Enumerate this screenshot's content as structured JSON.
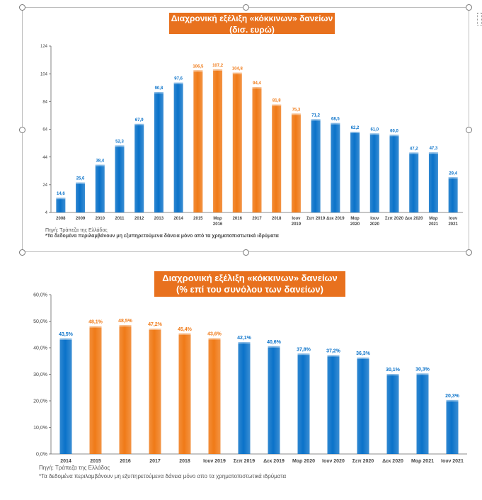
{
  "colors": {
    "blue": "#0a72c9",
    "orange": "#f07a17",
    "title_bg": "#e8711e",
    "axis": "#666666",
    "grid": "#d9d9d9"
  },
  "chart_data": [
    {
      "type": "bar",
      "title_line1": "Διαχρονική εξέλιξη «κόκκινων» δανείων",
      "title_line2": "(δισ. ευρώ)",
      "categories": [
        [
          "2008"
        ],
        [
          "2009"
        ],
        [
          "2010"
        ],
        [
          "2011"
        ],
        [
          "2012"
        ],
        [
          "2013"
        ],
        [
          "2014"
        ],
        [
          "2015"
        ],
        [
          "Μαρ",
          "2016"
        ],
        [
          "2016"
        ],
        [
          "2017"
        ],
        [
          "2018"
        ],
        [
          "Ιουν",
          "2019"
        ],
        [
          "Σεπ 2019"
        ],
        [
          "Δεκ 2019"
        ],
        [
          "Μαρ",
          "2020"
        ],
        [
          "Ιουν",
          "2020"
        ],
        [
          "Σεπ 2020"
        ],
        [
          "Δεκ 2020"
        ],
        [
          "Μαρ",
          "2021"
        ],
        [
          "Ιουν",
          "2021"
        ]
      ],
      "values": [
        14.6,
        25.6,
        38.4,
        52.3,
        67.9,
        90.8,
        97.6,
        106.5,
        107.2,
        104.8,
        94.4,
        81.8,
        75.3,
        71.2,
        68.5,
        62.2,
        61.0,
        60.0,
        47.2,
        47.3,
        29.4
      ],
      "value_labels": [
        "14,6",
        "25,6",
        "38,4",
        "52,3",
        "67,9",
        "90,8",
        "97,6",
        "106,5",
        "107,2",
        "104,8",
        "94,4",
        "81,8",
        "75,3",
        "71,2",
        "68,5",
        "62,2",
        "61,0",
        "60,0",
        "47,2",
        "47,3",
        "29,4"
      ],
      "bar_colors": [
        "blue",
        "blue",
        "blue",
        "blue",
        "blue",
        "blue",
        "blue",
        "orange",
        "orange",
        "orange",
        "orange",
        "orange",
        "orange",
        "blue",
        "blue",
        "blue",
        "blue",
        "blue",
        "blue",
        "blue",
        "blue"
      ],
      "ylim": [
        4,
        124
      ],
      "yticks": [
        "4",
        "24",
        "44",
        "64",
        "84",
        "104",
        "124"
      ],
      "source": "Πηγή: Τράπεζα της Ελλάδος",
      "footnote": "*Τα δεδομένα περιλαμβάνουν μη εξυπηρετούμενα δάνεια μόνο από τα χρηματοπιστωτικά ιδρύματα"
    },
    {
      "type": "bar",
      "title_line1": "Διαχρονική εξέλιξη «κόκκινων» δανείων",
      "title_line2": "(% επί του συνόλου των δανείων)",
      "categories": [
        "2014",
        "2015",
        "2016",
        "2017",
        "2018",
        "Ιουν 2019",
        "Σεπ 2019",
        "Δεκ 2019",
        "Μαρ 2020",
        "Ιουν 2020",
        "Σεπ 2020",
        "Δεκ 2020",
        "Μαρ 2021",
        "Ιουν 2021"
      ],
      "values": [
        43.5,
        48.1,
        48.5,
        47.2,
        45.4,
        43.6,
        42.1,
        40.6,
        37.8,
        37.2,
        36.3,
        30.1,
        30.3,
        20.3
      ],
      "value_labels": [
        "43,5%",
        "48,1%",
        "48,5%",
        "47,2%",
        "45,4%",
        "43,6%",
        "42,1%",
        "40,6%",
        "37,8%",
        "37,2%",
        "36,3%",
        "30,1%",
        "30,3%",
        "20,3%"
      ],
      "bar_colors": [
        "blue",
        "orange",
        "orange",
        "orange",
        "orange",
        "orange",
        "blue",
        "blue",
        "blue",
        "blue",
        "blue",
        "blue",
        "blue",
        "blue"
      ],
      "ylim": [
        0,
        60
      ],
      "yticks": [
        "0,0%",
        "10,0%",
        "20,0%",
        "30,0%",
        "40,0%",
        "50,0%",
        "60,0%"
      ],
      "source": "Πηγή: Τράπεζα της Ελλάδος",
      "footnote": "*Τα δεδομένα περιλαμβάνουν μη εξυπηρετούμενα δάνεια μόνο απο τα χρηματοπιστωτικά ιδρύματα"
    }
  ]
}
